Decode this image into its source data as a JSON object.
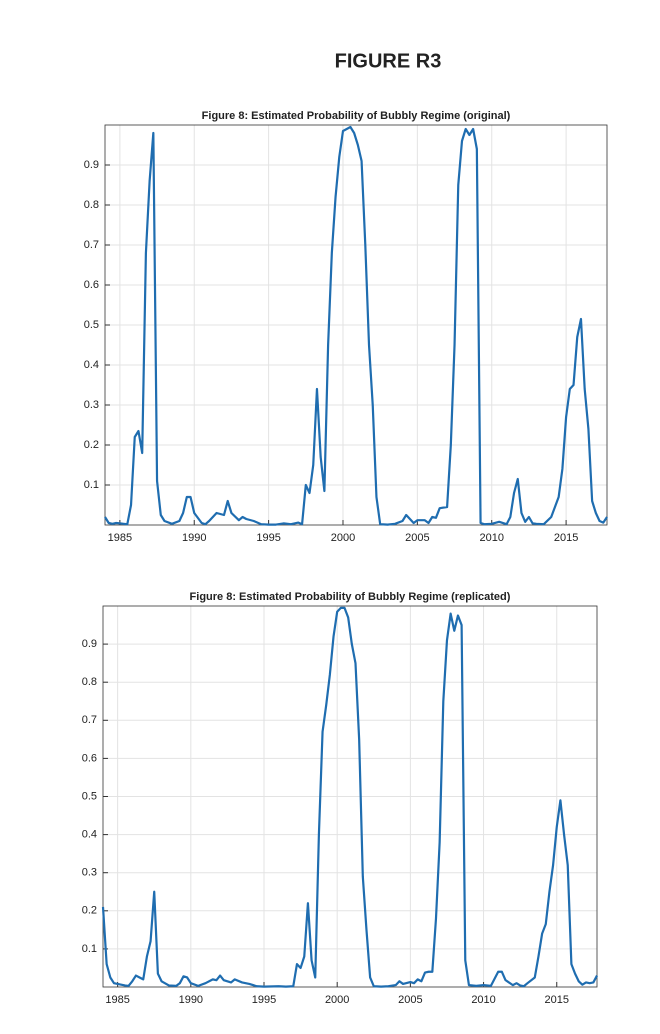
{
  "heading": "FIGURE R3",
  "chart_data": [
    {
      "type": "line",
      "title": "Figure 8: Estimated Probability of Bubbly Regime (original)",
      "x": [
        1984.0,
        1984.25,
        1984.5,
        1984.75,
        1985.0,
        1985.25,
        1985.5,
        1985.75,
        1986.0,
        1986.25,
        1986.5,
        1986.75,
        1987.0,
        1987.25,
        1987.5,
        1987.75,
        1988.0,
        1988.5,
        1989.0,
        1989.25,
        1989.5,
        1989.75,
        1990.0,
        1990.5,
        1990.75,
        1991.0,
        1991.5,
        1992.0,
        1992.25,
        1992.5,
        1993.0,
        1993.25,
        1993.5,
        1994.0,
        1994.5,
        1995.0,
        1995.5,
        1996.0,
        1996.5,
        1997.0,
        1997.25,
        1997.5,
        1997.75,
        1998.0,
        1998.25,
        1998.5,
        1998.75,
        1999.0,
        1999.25,
        1999.5,
        1999.75,
        2000.0,
        2000.25,
        2000.5,
        2000.75,
        2001.0,
        2001.25,
        2001.5,
        2001.75,
        2002.0,
        2002.25,
        2002.5,
        2003.0,
        2003.5,
        2004.0,
        2004.25,
        2004.5,
        2004.75,
        2005.0,
        2005.5,
        2005.75,
        2006.0,
        2006.25,
        2006.5,
        2007.0,
        2007.25,
        2007.5,
        2007.75,
        2008.0,
        2008.25,
        2008.5,
        2008.75,
        2009.0,
        2009.25,
        2009.5,
        2010.0,
        2010.5,
        2011.0,
        2011.25,
        2011.5,
        2011.75,
        2012.0,
        2012.25,
        2012.5,
        2012.75,
        2013.0,
        2013.5,
        2014.0,
        2014.5,
        2014.75,
        2015.0,
        2015.25,
        2015.5,
        2015.75,
        2016.0,
        2016.25,
        2016.5,
        2016.75,
        2017.0,
        2017.25,
        2017.5,
        2017.75
      ],
      "series": [
        {
          "color": "#1f6db0",
          "values": [
            0.02,
            0.005,
            0.003,
            0.005,
            0.004,
            0.003,
            0.002,
            0.05,
            0.22,
            0.235,
            0.18,
            0.68,
            0.86,
            0.98,
            0.11,
            0.025,
            0.01,
            0.003,
            0.01,
            0.03,
            0.07,
            0.07,
            0.03,
            0.005,
            0.002,
            0.01,
            0.03,
            0.025,
            0.06,
            0.03,
            0.012,
            0.02,
            0.015,
            0.01,
            0.002,
            0.001,
            0.001,
            0.004,
            0.002,
            0.006,
            0.002,
            0.1,
            0.08,
            0.15,
            0.34,
            0.17,
            0.085,
            0.45,
            0.68,
            0.82,
            0.92,
            0.985,
            0.99,
            0.995,
            0.98,
            0.95,
            0.91,
            0.7,
            0.45,
            0.3,
            0.07,
            0.002,
            0.001,
            0.003,
            0.01,
            0.025,
            0.015,
            0.005,
            0.012,
            0.012,
            0.005,
            0.02,
            0.018,
            0.042,
            0.045,
            0.2,
            0.45,
            0.85,
            0.96,
            0.99,
            0.975,
            0.99,
            0.94,
            0.005,
            0.002,
            0.003,
            0.008,
            0.002,
            0.02,
            0.08,
            0.115,
            0.03,
            0.008,
            0.02,
            0.004,
            0.003,
            0.002,
            0.02,
            0.07,
            0.14,
            0.27,
            0.34,
            0.35,
            0.47,
            0.515,
            0.34,
            0.24,
            0.06,
            0.03,
            0.01,
            0.006,
            0.02
          ]
        }
      ],
      "xlim": [
        1984,
        2017.75
      ],
      "xticks": [
        1985,
        1990,
        1995,
        2000,
        2005,
        2010,
        2015
      ],
      "ylim": [
        0,
        1
      ],
      "yticks": [
        0.1,
        0.2,
        0.3,
        0.4,
        0.5,
        0.6,
        0.7,
        0.8,
        0.9
      ],
      "grid": true
    },
    {
      "type": "line",
      "title": "Figure 8: Estimated Probability of Bubbly Regime (replicated)",
      "x": [
        1984.0,
        1984.25,
        1984.5,
        1984.75,
        1985.0,
        1985.5,
        1985.75,
        1986.0,
        1986.25,
        1986.5,
        1986.75,
        1987.0,
        1987.25,
        1987.5,
        1987.75,
        1988.0,
        1988.5,
        1989.0,
        1989.25,
        1989.5,
        1989.75,
        1990.0,
        1990.5,
        1991.0,
        1991.5,
        1991.75,
        1992.0,
        1992.25,
        1992.75,
        1993.0,
        1993.5,
        1994.0,
        1994.5,
        1995.0,
        1996.0,
        1996.5,
        1997.0,
        1997.25,
        1997.5,
        1997.75,
        1998.0,
        1998.25,
        1998.5,
        1998.75,
        1999.0,
        1999.25,
        1999.5,
        1999.75,
        2000.0,
        2000.25,
        2000.5,
        2000.75,
        2001.0,
        2001.25,
        2001.5,
        2001.75,
        2002.0,
        2002.25,
        2002.5,
        2003.0,
        2003.5,
        2004.0,
        2004.25,
        2004.5,
        2005.0,
        2005.25,
        2005.5,
        2005.75,
        2006.0,
        2006.25,
        2006.5,
        2006.75,
        2007.0,
        2007.25,
        2007.5,
        2007.75,
        2008.0,
        2008.25,
        2008.5,
        2008.75,
        2009.0,
        2009.5,
        2010.0,
        2010.5,
        2011.0,
        2011.25,
        2011.5,
        2012.0,
        2012.25,
        2012.5,
        2012.75,
        2013.0,
        2013.5,
        2013.75,
        2014.0,
        2014.25,
        2014.5,
        2014.75,
        2015.0,
        2015.25,
        2015.5,
        2015.75,
        2016.0,
        2016.25,
        2016.5,
        2016.75,
        2017.0,
        2017.25,
        2017.5,
        2017.75
      ],
      "series": [
        {
          "color": "#1f6db0",
          "values": [
            0.21,
            0.06,
            0.025,
            0.01,
            0.008,
            0.004,
            0.003,
            0.015,
            0.03,
            0.025,
            0.02,
            0.08,
            0.12,
            0.25,
            0.035,
            0.015,
            0.004,
            0.003,
            0.01,
            0.028,
            0.025,
            0.01,
            0.003,
            0.01,
            0.02,
            0.018,
            0.03,
            0.018,
            0.012,
            0.02,
            0.012,
            0.008,
            0.002,
            0.001,
            0.002,
            0.001,
            0.002,
            0.06,
            0.05,
            0.08,
            0.22,
            0.07,
            0.025,
            0.4,
            0.67,
            0.74,
            0.82,
            0.92,
            0.985,
            0.995,
            0.995,
            0.97,
            0.9,
            0.85,
            0.65,
            0.29,
            0.15,
            0.025,
            0.002,
            0.001,
            0.002,
            0.005,
            0.015,
            0.008,
            0.013,
            0.01,
            0.02,
            0.015,
            0.038,
            0.04,
            0.04,
            0.18,
            0.38,
            0.75,
            0.91,
            0.98,
            0.935,
            0.975,
            0.95,
            0.07,
            0.005,
            0.003,
            0.005,
            0.003,
            0.04,
            0.04,
            0.018,
            0.005,
            0.01,
            0.004,
            0.002,
            0.01,
            0.025,
            0.08,
            0.14,
            0.165,
            0.25,
            0.32,
            0.42,
            0.49,
            0.4,
            0.32,
            0.06,
            0.035,
            0.015,
            0.006,
            0.012,
            0.01,
            0.012,
            0.03
          ]
        }
      ],
      "xlim": [
        1984,
        2017.75
      ],
      "xticks": [
        1985,
        1990,
        1995,
        2000,
        2005,
        2010,
        2015
      ],
      "ylim": [
        0,
        1
      ],
      "yticks": [
        0.1,
        0.2,
        0.3,
        0.4,
        0.5,
        0.6,
        0.7,
        0.8,
        0.9
      ],
      "grid": true
    }
  ]
}
